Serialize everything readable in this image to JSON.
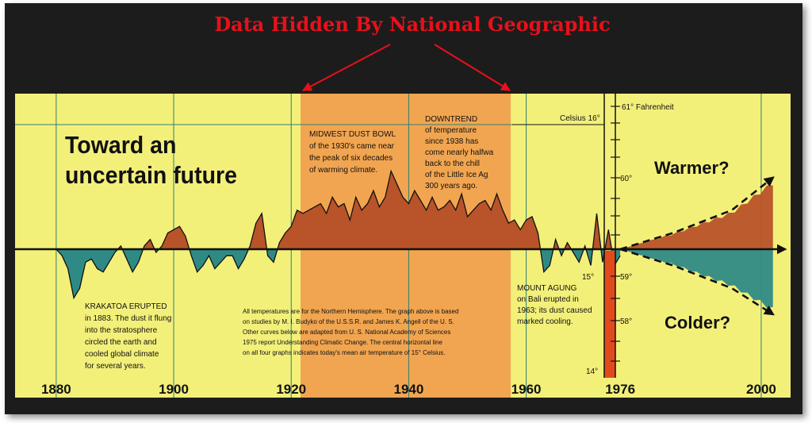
{
  "banner": {
    "text": "Data Hidden By National Geographic",
    "color": "#e8101a"
  },
  "colors": {
    "panel": "#f3f07a",
    "warm": "#b8532a",
    "cool": "#2f8a86",
    "highlight": "#f19a4a",
    "line": "#111111",
    "grid": "#2e7e78"
  },
  "chart_data": {
    "type": "area",
    "title": "Toward an uncertain future",
    "title_lines": [
      "Toward an",
      "uncertain future"
    ],
    "x_ticks": [
      "1880",
      "1900",
      "1920",
      "1940",
      "1960",
      "1976",
      "2000"
    ],
    "x_tick_values": [
      1880,
      1900,
      1920,
      1940,
      1960,
      1976,
      2000
    ],
    "xlim": [
      1873,
      2005
    ],
    "baseline_celsius": 15,
    "series": [
      {
        "kind": "temperature anomaly vs 15°C (relative units)",
        "x": [
          1880,
          1881,
          1882,
          1883,
          1884,
          1885,
          1886,
          1887,
          1888,
          1889,
          1890,
          1891,
          1892,
          1893,
          1894,
          1895,
          1896,
          1897,
          1898,
          1899,
          1900,
          1901,
          1902,
          1903,
          1904,
          1905,
          1906,
          1907,
          1908,
          1909,
          1910,
          1911,
          1912,
          1913,
          1914,
          1915,
          1916,
          1917,
          1918,
          1919,
          1920,
          1921,
          1922,
          1923,
          1924,
          1925,
          1926,
          1927,
          1928,
          1929,
          1930,
          1931,
          1932,
          1933,
          1934,
          1935,
          1936,
          1937,
          1938,
          1939,
          1940,
          1941,
          1942,
          1943,
          1944,
          1945,
          1946,
          1947,
          1948,
          1949,
          1950,
          1951,
          1952,
          1953,
          1954,
          1955,
          1956,
          1957,
          1958,
          1959,
          1960,
          1961,
          1962,
          1963,
          1964,
          1965,
          1966,
          1967,
          1968,
          1969,
          1970,
          1971,
          1972,
          1973,
          1974,
          1975,
          1976
        ],
        "y": [
          0,
          -0.1,
          -0.3,
          -0.75,
          -0.6,
          -0.2,
          -0.15,
          -0.3,
          -0.35,
          -0.2,
          -0.05,
          0.05,
          -0.15,
          -0.35,
          -0.2,
          0.05,
          0.15,
          -0.05,
          0.05,
          0.25,
          0.3,
          0.35,
          0.2,
          -0.1,
          -0.35,
          -0.25,
          -0.1,
          -0.3,
          -0.2,
          -0.1,
          -0.1,
          -0.3,
          -0.15,
          0.05,
          0.4,
          0.55,
          -0.1,
          -0.2,
          0.1,
          0.25,
          0.35,
          0.6,
          0.55,
          0.6,
          0.65,
          0.7,
          0.55,
          0.8,
          0.65,
          0.7,
          0.45,
          0.8,
          0.6,
          0.7,
          0.9,
          0.65,
          0.8,
          1.2,
          1.0,
          0.8,
          0.7,
          0.9,
          0.75,
          0.6,
          0.8,
          0.6,
          0.65,
          0.75,
          0.6,
          0.85,
          0.5,
          0.6,
          0.7,
          0.75,
          0.6,
          0.85,
          0.6,
          0.4,
          0.45,
          0.3,
          0.45,
          0.5,
          0.25,
          -0.35,
          -0.25,
          0.15,
          -0.1,
          0.1,
          -0.05,
          -0.2,
          0.05,
          -0.25,
          0.55,
          -0.2,
          0.3,
          -0.25,
          -0.1
        ]
      },
      {
        "name": "Warmer?",
        "x": [
          1976,
          1985,
          1995,
          2002
        ],
        "y": [
          0,
          0.25,
          0.6,
          1.1
        ]
      },
      {
        "name": "Colder?",
        "x": [
          1976,
          1985,
          1995,
          2002
        ],
        "y": [
          0,
          -0.25,
          -0.6,
          -1.0
        ]
      }
    ],
    "highlight_range": [
      1920,
      1960
    ],
    "right_axis": {
      "labels": [
        "61° Fahrenheit",
        "Celsius 16°",
        "60°",
        "15°",
        "59°",
        "58°",
        "14°"
      ]
    },
    "annotations": {
      "krakatoa": [
        "KRAKATOA ERUPTED",
        "in 1883. The dust it flung",
        "into the stratosphere",
        "circled the earth and",
        "cooled global climate",
        "for several years."
      ],
      "dustbowl": [
        "MIDWEST DUST BOWL",
        "of the 1930's came near",
        "the peak of six decades",
        "of warming climate."
      ],
      "downtrend": [
        "DOWNTREND",
        "of temperature",
        "since 1938 has",
        "come nearly halfwa",
        "back to the chill",
        "of the Little Ice Ag",
        "300 years ago."
      ],
      "agung": [
        "MOUNT AGUNG",
        "on Bali erupted in",
        "1963; its dust caused",
        "marked cooling."
      ],
      "note": [
        "All temperatures are for the Northern Hemisphere. The graph above is based",
        "on studies by M. I. Budyko of the U.S.S.R. and James K. Angell of the U. S.",
        "Other curves below are adapted from U. S. National Academy of Sciences",
        "1975 report Understanding Climatic Change. The central horizontal line",
        "on all four graphs indicates today's mean air temperature of 15° Celsius."
      ],
      "warmer": "Warmer?",
      "colder": "Colder?"
    }
  }
}
